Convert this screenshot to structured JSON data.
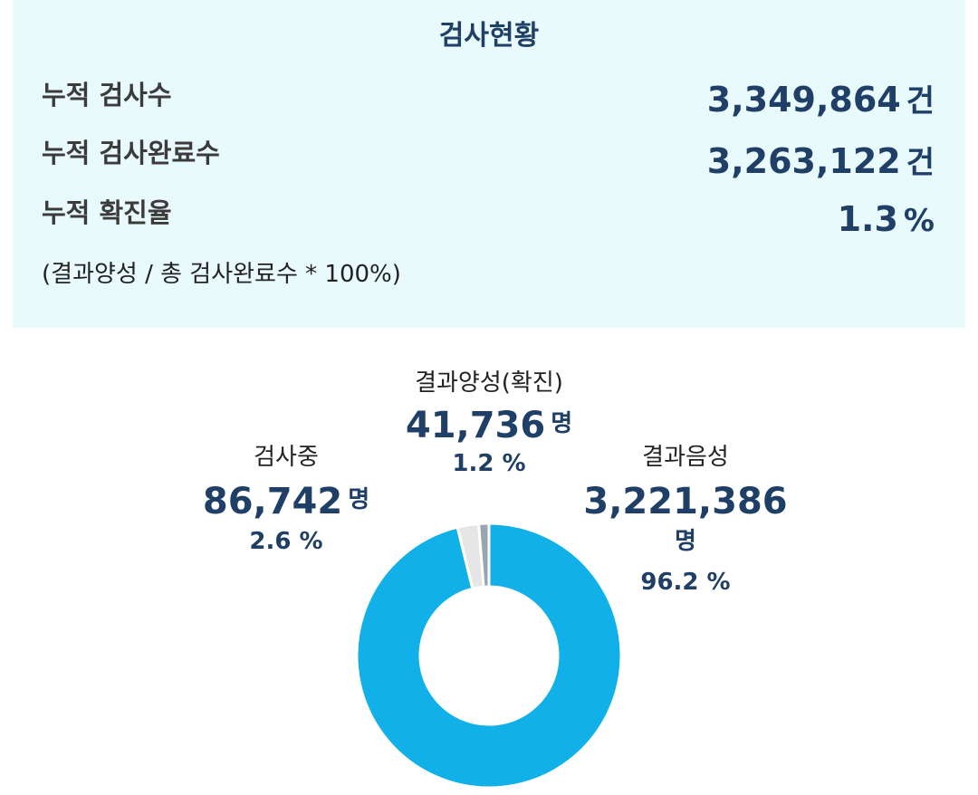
{
  "summary": {
    "title": "검사현황",
    "rows": [
      {
        "label": "누적 검사수",
        "value": "3,349,864",
        "unit": "건"
      },
      {
        "label": "누적 검사완료수",
        "value": "3,263,122",
        "unit": "건"
      },
      {
        "label": "누적 확진율",
        "value": "1.3",
        "unit": "%"
      }
    ],
    "note": "(결과양성 / 총 검사완료수 * 100%)"
  },
  "chart_data": {
    "type": "pie",
    "categories": [
      "결과음성",
      "검사중",
      "결과양성(확진)"
    ],
    "values": [
      3221386,
      86742,
      41736
    ],
    "percent_labels": [
      "96.2 %",
      "2.6 %",
      "1.2 %"
    ],
    "value_labels": [
      "3,221,386",
      "86,742",
      "41,736"
    ],
    "unit": "명",
    "colors": [
      "#12b0e8",
      "#e6e6e6",
      "#9aa5ad"
    ],
    "title": "",
    "legend": "none"
  }
}
